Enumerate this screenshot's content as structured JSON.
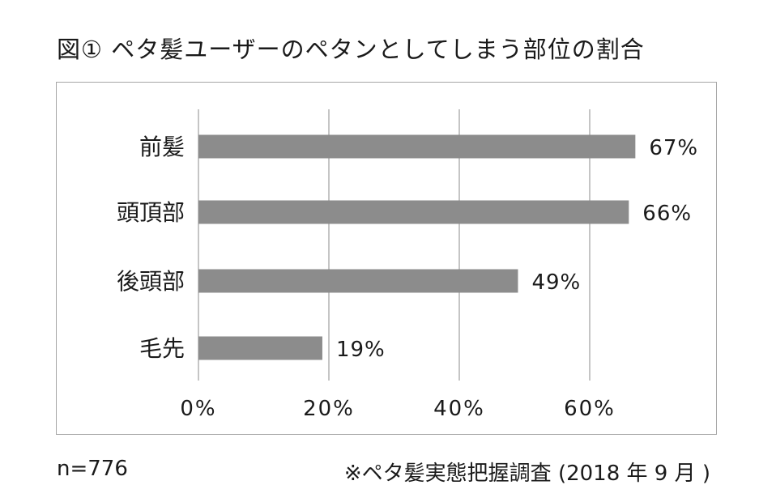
{
  "title": "図① ペタ髪ユーザーのペタンとしてしまう部位の割合",
  "footer": {
    "n": "n=776",
    "source": "※ペタ髪実態把握調査 (2018 年 9 月 )"
  },
  "colors": {
    "bar": "#8c8c8c",
    "grid": "#a6a6a6",
    "frame": "#a6a6a6"
  },
  "chart_data": {
    "type": "bar",
    "orientation": "horizontal",
    "title": "図① ペタ髪ユーザーのペタンとしてしまう部位の割合",
    "categories": [
      "前髪",
      "頭頂部",
      "後頭部",
      "毛先"
    ],
    "values": [
      67,
      66,
      49,
      19
    ],
    "data_labels": [
      "67%",
      "66%",
      "49%",
      "19%"
    ],
    "xlim": [
      0,
      80
    ],
    "x_ticks": [
      0,
      20,
      40,
      60
    ],
    "x_tick_labels": [
      "0%",
      "20%",
      "40%",
      "60%"
    ],
    "grid": "vertical",
    "legend": "none",
    "xlabel": "",
    "ylabel": ""
  }
}
